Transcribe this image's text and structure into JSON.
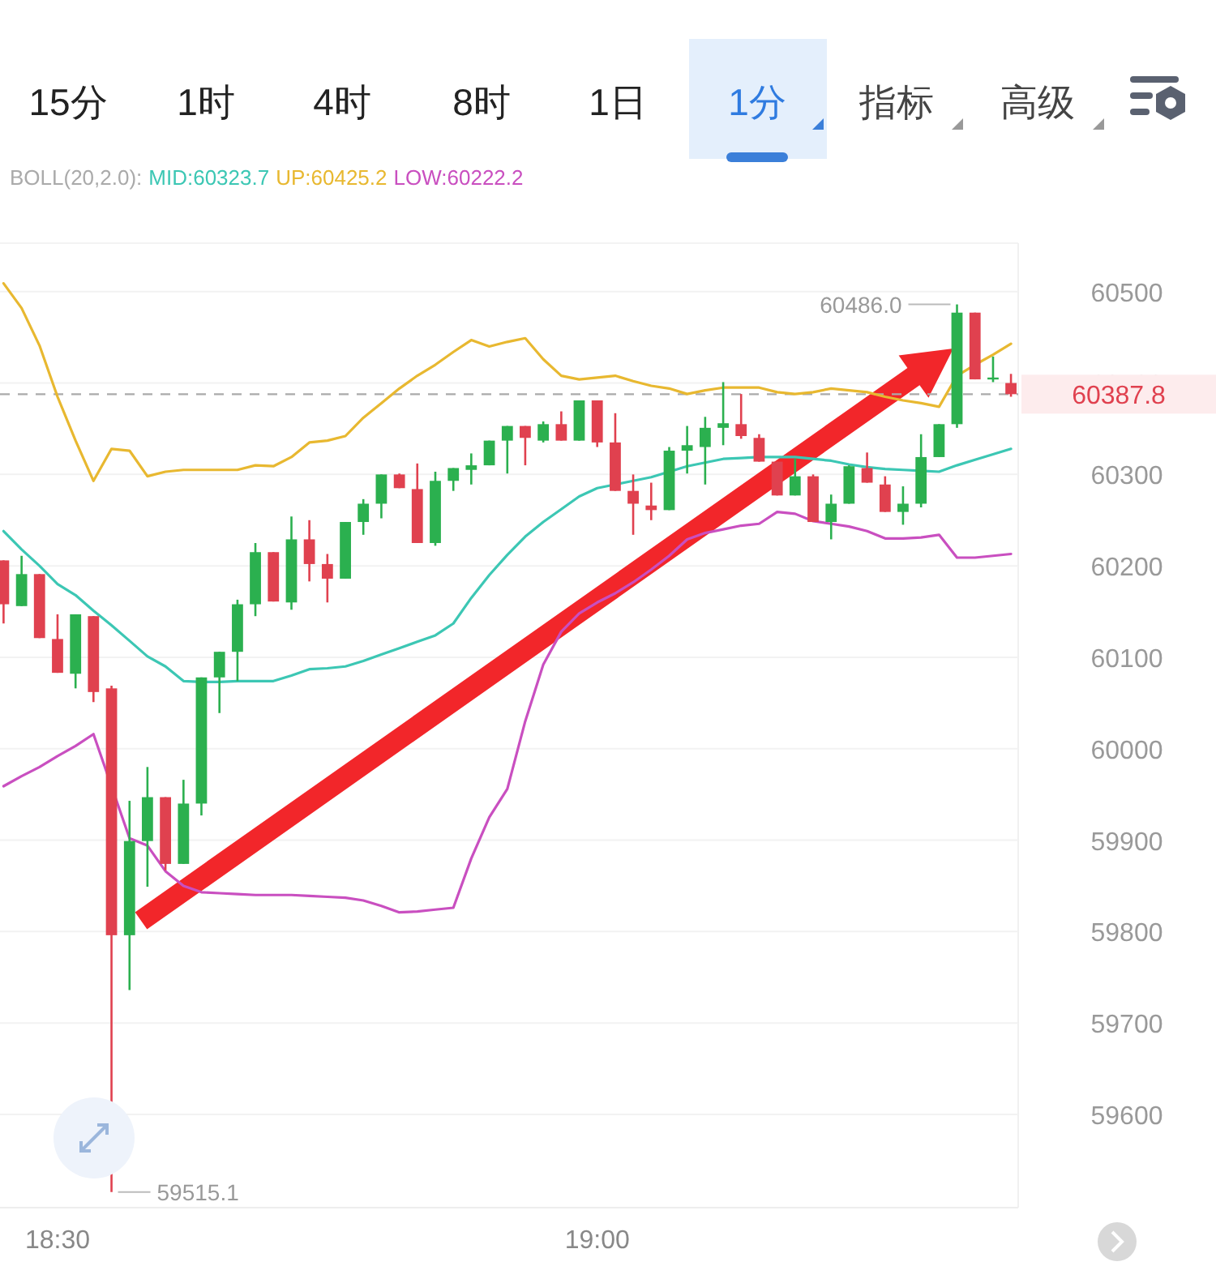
{
  "chart_data": {
    "type": "candlestick",
    "legend_title": "BOLL(20,2.0):",
    "legend": "top",
    "x": [
      18.45,
      18.4667,
      18.4833,
      18.5,
      18.5167,
      18.5333,
      18.55,
      18.5667,
      18.5833,
      18.6,
      18.6167,
      18.6333,
      18.65,
      18.6667,
      18.6833,
      18.7,
      18.7167,
      18.7333,
      18.75,
      18.7667,
      18.7833,
      18.8,
      18.8167,
      18.8333,
      18.85,
      18.8667,
      18.8833,
      18.9,
      18.9167,
      18.9333,
      18.95,
      18.9667,
      18.9833,
      19,
      19.0167,
      19.0333,
      19.05,
      19.0667,
      19.0833,
      19.1,
      19.1167,
      19.1333,
      19.15,
      19.1667,
      19.1833,
      19.2,
      19.2167,
      19.2333,
      19.25,
      19.2667,
      19.2833,
      19.3,
      19.3167,
      19.3333,
      19.35,
      19.3667,
      19.3833
    ],
    "ohlc": [
      [
        60206,
        60206,
        60137,
        60158
      ],
      [
        60156,
        60211,
        60156,
        60191
      ],
      [
        60191,
        60191,
        60121,
        60121
      ],
      [
        60120,
        60147,
        60083,
        60083
      ],
      [
        60082,
        60147,
        60066,
        60147
      ],
      [
        60145,
        60145,
        60051,
        60062
      ],
      [
        60066,
        60069,
        59515.1,
        59796
      ],
      [
        59796,
        59943,
        59736,
        59899
      ],
      [
        59899,
        59980,
        59849,
        59947
      ],
      [
        59947,
        59947,
        59867,
        59874
      ],
      [
        59874,
        59966,
        59874,
        59940
      ],
      [
        59940,
        60078,
        59927,
        60078
      ],
      [
        60078,
        60106,
        60039,
        60106
      ],
      [
        60106,
        60163,
        60074,
        60158
      ],
      [
        60158,
        60225,
        60145,
        60215
      ],
      [
        60215,
        60215,
        60161,
        60161
      ],
      [
        60160,
        60254,
        60152,
        60229
      ],
      [
        60229,
        60250,
        60183,
        60202
      ],
      [
        60202,
        60213,
        60160,
        60186
      ],
      [
        60186,
        60248,
        60186,
        60248
      ],
      [
        60248,
        60273,
        60234,
        60268
      ],
      [
        60268,
        60300,
        60252,
        60300
      ],
      [
        60300,
        60301,
        60285,
        60285
      ],
      [
        60284,
        60312,
        60225,
        60225
      ],
      [
        60225,
        60303,
        60222,
        60293
      ],
      [
        60293,
        60307,
        60282,
        60307
      ],
      [
        60305,
        60323,
        60289,
        60310
      ],
      [
        60310,
        60337,
        60310,
        60337
      ],
      [
        60337,
        60353,
        60301,
        60353
      ],
      [
        60353,
        60353,
        60310,
        60340
      ],
      [
        60337,
        60358,
        60335,
        60355
      ],
      [
        60355,
        60369,
        60337,
        60337
      ],
      [
        60337,
        60381,
        60337,
        60381
      ],
      [
        60381,
        60381,
        60330,
        60335
      ],
      [
        60335,
        60367,
        60282,
        60282
      ],
      [
        60282,
        60300,
        60234,
        60268
      ],
      [
        60266,
        60291,
        60250,
        60261
      ],
      [
        60261,
        60330,
        60261,
        60326
      ],
      [
        60326,
        60353,
        60301,
        60332
      ],
      [
        60330,
        60363,
        60289,
        60351
      ],
      [
        60351,
        60401,
        60332,
        60356
      ],
      [
        60355,
        60388,
        60339,
        60342
      ],
      [
        60340,
        60344,
        60314,
        60314
      ],
      [
        60314,
        60314,
        60277,
        60277
      ],
      [
        60277,
        60317,
        60277,
        60298
      ],
      [
        60298,
        60300,
        60248,
        60248
      ],
      [
        60248,
        60278,
        60229,
        60268
      ],
      [
        60268,
        60310,
        60268,
        60309
      ],
      [
        60307,
        60324,
        60291,
        60291
      ],
      [
        60289,
        60298,
        60259,
        60259
      ],
      [
        60259,
        60287,
        60245,
        60268
      ],
      [
        60268,
        60344,
        60264,
        60319
      ],
      [
        60319,
        60355,
        60319,
        60355
      ],
      [
        60355,
        60486.0,
        60351,
        60477
      ],
      [
        60477,
        60477,
        60404,
        60404
      ],
      [
        60404,
        60429,
        60401,
        60406
      ],
      [
        60400,
        60410,
        60385,
        60387.8
      ]
    ],
    "series": [
      {
        "type": "line",
        "name": "MID:60323.7",
        "color": "#3cc7b4",
        "values": [
          60238,
          60218,
          60200,
          60180,
          60168,
          60151,
          60135,
          60118,
          60101,
          60090,
          60074,
          60073,
          60073,
          60074,
          60074,
          60074,
          60080,
          60087,
          60088,
          60090,
          60096,
          60103,
          60110,
          60117,
          60124,
          60137,
          60165,
          60190,
          60212,
          60232,
          60248,
          60262,
          60276,
          60285,
          60289,
          60293,
          60297,
          60303,
          60309,
          60313,
          60317,
          60318,
          60319,
          60319,
          60319,
          60317,
          60315,
          60311,
          60308,
          60306,
          60305,
          60304,
          60303,
          60310,
          60316,
          60322,
          60328
        ]
      },
      {
        "type": "line",
        "name": "UP:60425.2",
        "color": "#e8b830",
        "values": [
          60509,
          60482,
          60441,
          60385,
          60337,
          60293,
          60328,
          60326,
          60298,
          60303,
          60305,
          60305,
          60305,
          60305,
          60310,
          60309,
          60319,
          60335,
          60337,
          60342,
          60362,
          60378,
          60394,
          60408,
          60420,
          60434,
          60447,
          60440,
          60445,
          60449,
          60426,
          60408,
          60404,
          60406,
          60408,
          60402,
          60397,
          60394,
          60388,
          60392,
          60395,
          60395,
          60395,
          60390,
          60388,
          60390,
          60394,
          60392,
          60390,
          60385,
          60381,
          60378,
          60374,
          60408,
          60420,
          60431,
          60443
        ]
      },
      {
        "type": "line",
        "name": "LOW:60222.2",
        "color": "#c94fc0",
        "values": [
          59959,
          59970,
          59980,
          59992,
          60003,
          60016,
          null,
          59902,
          59894,
          59866,
          59850,
          59843,
          59842,
          59841,
          59840,
          59840,
          59840,
          59839,
          59838,
          59837,
          59834,
          59828,
          59821,
          59822,
          59824,
          59826,
          59880,
          59925,
          59956,
          60030,
          60092,
          60128,
          60148,
          60160,
          60170,
          60182,
          60196,
          60211,
          60229,
          60236,
          60240,
          60244,
          60246,
          60259,
          60257,
          60249,
          60246,
          60243,
          60238,
          60230,
          60230,
          60231,
          60234,
          60209,
          60209,
          60211,
          60213
        ]
      }
    ],
    "xlim": [
      18.4467,
      19.39
    ],
    "xticks": [
      {
        "value": 18.5,
        "label": "18:30"
      },
      {
        "value": 19,
        "label": "19:00"
      }
    ],
    "ylim": [
      59498,
      60553
    ],
    "yticks": [
      59600,
      59700,
      59800,
      59900,
      60000,
      60100,
      60200,
      60300,
      60400,
      60500
    ],
    "grid": "y",
    "ref_lines": [
      {
        "axis": "y",
        "value": 60387.8,
        "label": "60387.8",
        "color": "#aaaaaa",
        "line_style": "dashed"
      }
    ],
    "annotations": [
      "15分",
      "1时",
      "4时",
      "8时",
      "1日",
      "1分",
      "指标",
      "高级",
      {
        "text": "60486.0",
        "x": 19.3333,
        "y": 60486.0
      },
      {
        "text": "59515.1",
        "x": 18.55,
        "y": 59515.1
      }
    ]
  }
}
